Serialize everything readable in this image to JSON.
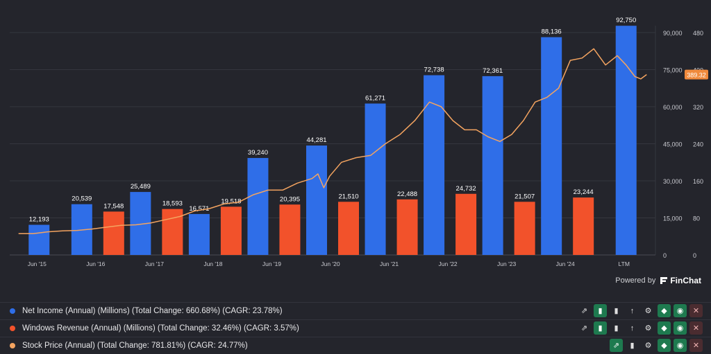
{
  "chart_data": {
    "type": "bar",
    "categories": [
      "Jun '15",
      "Jun '16",
      "Jun '17",
      "Jun '18",
      "Jun '19",
      "Jun '20",
      "Jun '21",
      "Jun '22",
      "Jun '23",
      "Jun '24",
      "LTM"
    ],
    "series": [
      {
        "name": "Net Income (Annual) (Millions) (Total Change: 660.68%) (CAGR: 23.78%)",
        "color": "#2f6ee8",
        "axis": "left",
        "values": [
          12193,
          20539,
          25489,
          16571,
          39240,
          44281,
          61271,
          72738,
          72361,
          88136,
          92750
        ]
      },
      {
        "name": "Windows Revenue (Annual) (Millions) (Total Change: 32.46%) (CAGR: 3.57%)",
        "color": "#f2522b",
        "axis": "left",
        "values": [
          null,
          17548,
          18593,
          19518,
          20395,
          21510,
          22488,
          24732,
          21507,
          23244,
          null
        ]
      },
      {
        "name": "Stock Price (Annual) (Total Change: 781.81%) (CAGR: 24.77%)",
        "color": "#f4a460",
        "axis": "right",
        "type": "line",
        "points": [
          [
            0,
            46
          ],
          [
            0.25,
            46
          ],
          [
            0.5,
            50
          ],
          [
            0.75,
            52
          ],
          [
            1,
            53
          ],
          [
            1.25,
            56
          ],
          [
            1.5,
            60
          ],
          [
            1.75,
            64
          ],
          [
            2,
            65
          ],
          [
            2.25,
            69
          ],
          [
            2.5,
            76
          ],
          [
            2.75,
            83
          ],
          [
            3,
            95
          ],
          [
            3.25,
            100
          ],
          [
            3.5,
            110
          ],
          [
            3.75,
            114
          ],
          [
            4,
            130
          ],
          [
            4.25,
            140
          ],
          [
            4.5,
            140
          ],
          [
            4.75,
            155
          ],
          [
            5,
            165
          ],
          [
            5.1,
            175
          ],
          [
            5.2,
            145
          ],
          [
            5.3,
            170
          ],
          [
            5.5,
            200
          ],
          [
            5.75,
            210
          ],
          [
            6,
            215
          ],
          [
            6.25,
            240
          ],
          [
            6.5,
            260
          ],
          [
            6.75,
            290
          ],
          [
            7,
            330
          ],
          [
            7.2,
            320
          ],
          [
            7.4,
            290
          ],
          [
            7.6,
            270
          ],
          [
            7.8,
            270
          ],
          [
            8,
            255
          ],
          [
            8.2,
            245
          ],
          [
            8.4,
            260
          ],
          [
            8.6,
            290
          ],
          [
            8.8,
            330
          ],
          [
            9,
            340
          ],
          [
            9.2,
            360
          ],
          [
            9.4,
            420
          ],
          [
            9.6,
            425
          ],
          [
            9.8,
            445
          ],
          [
            10,
            410
          ],
          [
            10.2,
            430
          ],
          [
            10.35,
            410
          ],
          [
            10.5,
            385
          ],
          [
            10.6,
            380
          ],
          [
            10.7,
            389.32
          ]
        ]
      }
    ],
    "y_left": {
      "min": 0,
      "max": 90000,
      "ticks": [
        "0",
        "15,000",
        "30,000",
        "45,000",
        "60,000",
        "75,000",
        "90,000"
      ]
    },
    "y_right": {
      "min": 0,
      "max": 480,
      "ticks": [
        "0",
        "80",
        "160",
        "240",
        "320",
        "400",
        "480"
      ]
    },
    "bar_labels": {
      "net_income": [
        "12,193",
        "20,539",
        "25,489",
        "16,571",
        "39,240",
        "44,281",
        "61,271",
        "72,738",
        "72,361",
        "88,136",
        "92,750"
      ],
      "windows": [
        "",
        "17,548",
        "18,593",
        "19,518",
        "20,395",
        "21,510",
        "22,488",
        "24,732",
        "21,507",
        "23,244",
        ""
      ]
    },
    "current_price": "389.32",
    "grid": true
  },
  "footer": {
    "powered_by": "Powered by",
    "brand": "FinChat"
  },
  "legend": [
    {
      "label": "Net Income (Annual) (Millions) (Total Change: 660.68%) (CAGR: 23.78%)",
      "color": "#2f6ee8"
    },
    {
      "label": "Windows Revenue (Annual) (Millions) (Total Change: 32.46%) (CAGR: 3.57%)",
      "color": "#f2522b"
    },
    {
      "label": "Stock Price (Annual) (Total Change: 781.81%) (CAGR: 24.77%)",
      "color": "#f4a460"
    }
  ],
  "tools": {
    "line_icon": "trend-line-icon",
    "bar_icon": "bar-chart-icon",
    "sort_icon": "sort-up-icon",
    "settings_icon": "gear-icon",
    "tag_icon": "tag-icon",
    "eye_icon": "eye-icon",
    "close_icon": "close-icon"
  }
}
